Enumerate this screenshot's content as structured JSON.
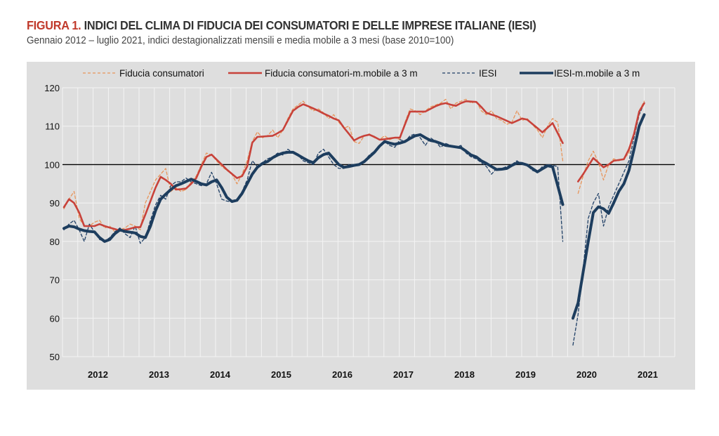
{
  "header": {
    "figure_label": "FIGURA 1.",
    "title": "INDICI DEL CLIMA DI FIDUCIA DEI CONSUMATORI E DELLE IMPRESE ITALIANE (IESI)",
    "subtitle": "Gennaio 2012 – luglio 2021, indici destagionalizzati mensili e media mobile a 3 mesi (base 2010=100)"
  },
  "colors": {
    "consumer_raw": "#e8955a",
    "consumer_ma": "#c8423a",
    "iesi_raw": "#1f3f66",
    "iesi_ma": "#1d3d5e",
    "background": "#dedede"
  },
  "chart_data": {
    "type": "line",
    "title": "INDICI DEL CLIMA DI FIDUCIA DEI CONSUMATORI E DELLE IMPRESE ITALIANE (IESI)",
    "xlabel": "",
    "ylabel": "",
    "start_month": "2012-01",
    "frequency": "monthly",
    "ylim": [
      50,
      120
    ],
    "yticks": [
      "50",
      "60",
      "70",
      "80",
      "90",
      "100",
      "110",
      "120"
    ],
    "xtick_labels": [
      "2012",
      "2013",
      "2014",
      "2015",
      "2016",
      "2017",
      "2018",
      "2019",
      "2020",
      "2021"
    ],
    "reference_line": 100,
    "grid": true,
    "legend_position": "top",
    "series": [
      {
        "name": "Fiducia consumatori",
        "style": "dashed",
        "values": [
          88.5,
          91,
          93,
          86,
          84,
          84,
          85,
          85.5,
          83.5,
          84,
          82.5,
          83,
          83.5,
          84.5,
          84,
          83,
          90,
          93,
          96,
          97.5,
          99,
          93,
          94,
          93,
          93.5,
          95.5,
          97,
          100,
          103,
          102.5,
          101,
          99.5,
          98.5,
          97.5,
          95,
          97.5,
          101,
          106,
          108.5,
          107,
          107.5,
          109,
          107,
          109,
          112,
          114.5,
          115.5,
          116.5,
          115,
          114,
          114.5,
          113.5,
          112,
          113,
          111,
          109.5,
          110,
          106,
          105.5,
          107.5,
          108,
          107,
          106.5,
          107.5,
          106.5,
          107,
          106.5,
          111,
          114.5,
          114,
          113,
          114,
          115,
          115.5,
          116,
          117,
          114.5,
          116,
          116.5,
          117,
          116,
          116.5,
          114,
          113,
          114,
          112,
          111.5,
          110.5,
          111,
          114,
          111.5,
          112,
          110.5,
          109,
          107,
          110,
          112,
          111,
          101,
          null,
          null,
          92.5,
          97,
          101,
          103.5,
          100.5,
          96,
          100,
          101.5,
          101,
          101.5,
          103,
          108,
          114,
          116.5
        ]
      },
      {
        "name": "Fiducia consumatori-m.mobile a 3 m",
        "style": "solid",
        "values": [
          88.9,
          91,
          90,
          87.5,
          84,
          84,
          84,
          84.5,
          84,
          83.6,
          83.2,
          82.8,
          83,
          83.3,
          83.7,
          83.7,
          87,
          90.5,
          94,
          96.8,
          96,
          95,
          93.5,
          93.6,
          93.8,
          95,
          96.5,
          99.5,
          102,
          102.6,
          101.3,
          100,
          98.7,
          97.6,
          96.5,
          97,
          99.5,
          105.7,
          107.2,
          107.3,
          107.4,
          107.5,
          108.2,
          109,
          111.5,
          114,
          115,
          115.7,
          115.2,
          114.6,
          114,
          113.3,
          112.7,
          112,
          111.5,
          109.6,
          108,
          106.3,
          107,
          107.5,
          107.8,
          107.2,
          106.5,
          106.6,
          106.8,
          107,
          107,
          110.5,
          113.8,
          113.8,
          113.8,
          113.8,
          114.5,
          115.2,
          115.7,
          116,
          115.6,
          115.3,
          116,
          116.5,
          116.4,
          116.3,
          115,
          113.5,
          113,
          112.6,
          112,
          111.4,
          110.8,
          111.4,
          112,
          111.7,
          110.6,
          109.5,
          108.4,
          109.6,
          110.8,
          108.2,
          105.6,
          null,
          null,
          95.6,
          97.5,
          99.6,
          101.7,
          100.5,
          99.3,
          100,
          101,
          101.2,
          101.4,
          104,
          108,
          113.8,
          116
        ]
      },
      {
        "name": "IESI",
        "style": "dashed",
        "values": [
          83,
          84.5,
          85.5,
          83,
          80,
          84.5,
          82.5,
          80.5,
          80,
          81,
          82.5,
          83.5,
          82,
          81,
          84,
          79.5,
          81,
          85.5,
          89.5,
          92,
          91,
          94.5,
          95.5,
          95.5,
          96.5,
          95.5,
          95,
          94.5,
          95,
          98,
          95,
          91,
          90.5,
          90.3,
          91,
          93,
          96,
          101,
          99.5,
          100.5,
          101.5,
          102,
          103,
          102.5,
          104,
          103,
          102.5,
          101,
          100.5,
          100,
          103,
          104,
          102,
          100,
          99,
          99,
          100,
          100,
          99.8,
          101,
          102.5,
          103.5,
          105,
          106,
          105,
          104.5,
          106.5,
          106,
          107.5,
          108,
          107,
          105,
          107,
          106,
          104.5,
          105.5,
          105,
          104.5,
          105,
          103,
          102,
          101.5,
          100.5,
          99.5,
          97.5,
          99,
          99,
          99.5,
          100,
          101,
          100,
          99.8,
          98.5,
          98,
          99.5,
          100,
          99.8,
          99.5,
          80,
          null,
          53,
          61,
          73,
          86,
          90,
          92.5,
          84,
          89,
          92,
          95,
          98,
          101,
          107,
          113,
          116
        ]
      },
      {
        "name": "IESI-m.mobile a 3 m",
        "style": "thick",
        "values": [
          83.4,
          84,
          83.8,
          83.2,
          82.8,
          82.6,
          82.5,
          81,
          80,
          80.5,
          82,
          83,
          82.6,
          82.4,
          82.2,
          81.3,
          81,
          84,
          88,
          91,
          92.3,
          93.5,
          94.5,
          95,
          95.6,
          96.2,
          95.6,
          95,
          94.7,
          95.5,
          96,
          94,
          91.5,
          90.4,
          90.7,
          92.5,
          95,
          97.5,
          99.3,
          100.3,
          100.8,
          101.8,
          102.5,
          103,
          103.2,
          103.2,
          102.5,
          101.7,
          101,
          100.5,
          101.8,
          102.6,
          103,
          101.5,
          100,
          99.3,
          99.5,
          99.8,
          100,
          100.8,
          102,
          103.2,
          104.8,
          106,
          105.6,
          105.3,
          105.6,
          106,
          106.8,
          107.5,
          107.8,
          107,
          106.3,
          106,
          105.5,
          105,
          104.8,
          104.6,
          104.4,
          103.5,
          102.5,
          102,
          101,
          100.3,
          99.5,
          98.7,
          98.8,
          99,
          99.8,
          100.4,
          100.3,
          99.9,
          99,
          98.1,
          98.9,
          99.7,
          99.4,
          94.5,
          89.6,
          null,
          60,
          64,
          72,
          80,
          87.5,
          89,
          88.5,
          87.3,
          90,
          93,
          95,
          98.5,
          104,
          110,
          113
        ]
      }
    ]
  }
}
